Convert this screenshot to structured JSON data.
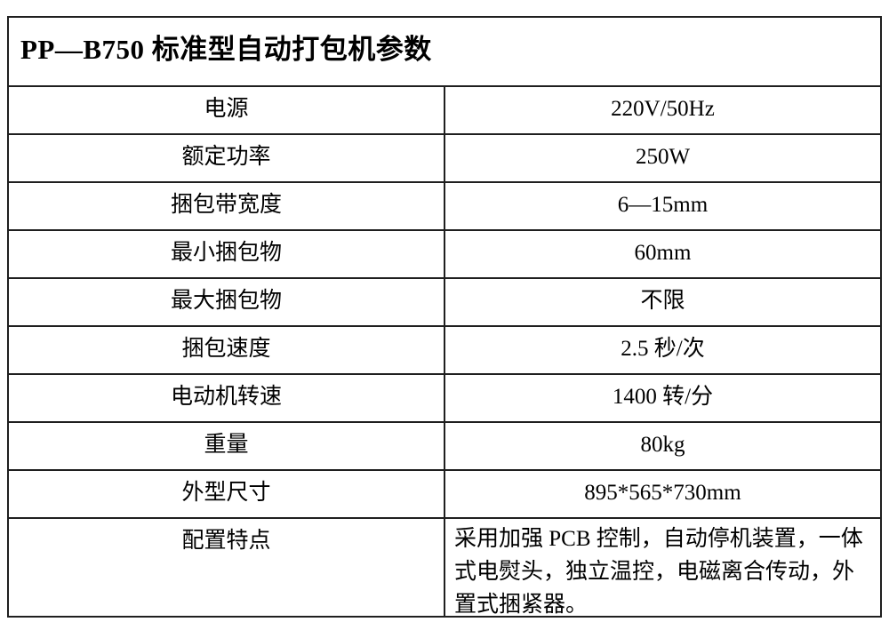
{
  "table": {
    "title": "PP—B750 标准型自动打包机参数",
    "rows": [
      {
        "label": "电源",
        "value": "220V/50Hz"
      },
      {
        "label": "额定功率",
        "value": "250W"
      },
      {
        "label": "捆包带宽度",
        "value": "6—15mm"
      },
      {
        "label": "最小捆包物",
        "value": "60mm"
      },
      {
        "label": "最大捆包物",
        "value": "不限"
      },
      {
        "label": "捆包速度",
        "value": "2.5 秒/次"
      },
      {
        "label": "电动机转速",
        "value": "1400 转/分"
      },
      {
        "label": "重量",
        "value": "80kg"
      },
      {
        "label": "外型尺寸",
        "value": "895*565*730mm"
      },
      {
        "label": "配置特点",
        "value": "采用加强 PCB 控制，自动停机装置，一体式电熨头，独立温控，电磁离合传动，外置式捆紧器。"
      }
    ]
  }
}
